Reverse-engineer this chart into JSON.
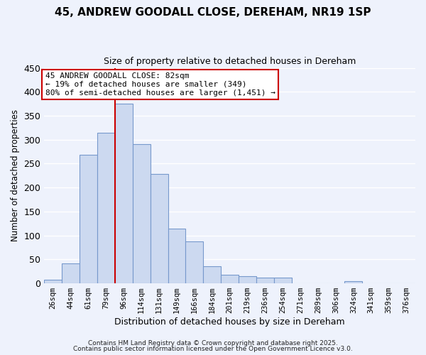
{
  "title1": "45, ANDREW GOODALL CLOSE, DEREHAM, NR19 1SP",
  "title2": "Size of property relative to detached houses in Dereham",
  "xlabel": "Distribution of detached houses by size in Dereham",
  "ylabel": "Number of detached properties",
  "bar_labels": [
    "26sqm",
    "44sqm",
    "61sqm",
    "79sqm",
    "96sqm",
    "114sqm",
    "131sqm",
    "149sqm",
    "166sqm",
    "184sqm",
    "201sqm",
    "219sqm",
    "236sqm",
    "254sqm",
    "271sqm",
    "289sqm",
    "306sqm",
    "324sqm",
    "341sqm",
    "359sqm",
    "376sqm"
  ],
  "bar_values": [
    7,
    42,
    268,
    315,
    375,
    291,
    229,
    115,
    88,
    35,
    18,
    15,
    12,
    12,
    0,
    0,
    0,
    5,
    0,
    0,
    0
  ],
  "bar_color": "#ccd9f0",
  "bar_edge_color": "#7799cc",
  "ylim": [
    0,
    450
  ],
  "vline_x_idx": 3,
  "vline_color": "#cc0000",
  "annotation_title": "45 ANDREW GOODALL CLOSE: 82sqm",
  "annotation_line1": "← 19% of detached houses are smaller (349)",
  "annotation_line2": "80% of semi-detached houses are larger (1,451) →",
  "annotation_box_color": "#ffffff",
  "annotation_box_edge": "#cc0000",
  "footnote1": "Contains HM Land Registry data © Crown copyright and database right 2025.",
  "footnote2": "Contains public sector information licensed under the Open Government Licence v3.0.",
  "background_color": "#eef2fc",
  "grid_color": "#ffffff"
}
